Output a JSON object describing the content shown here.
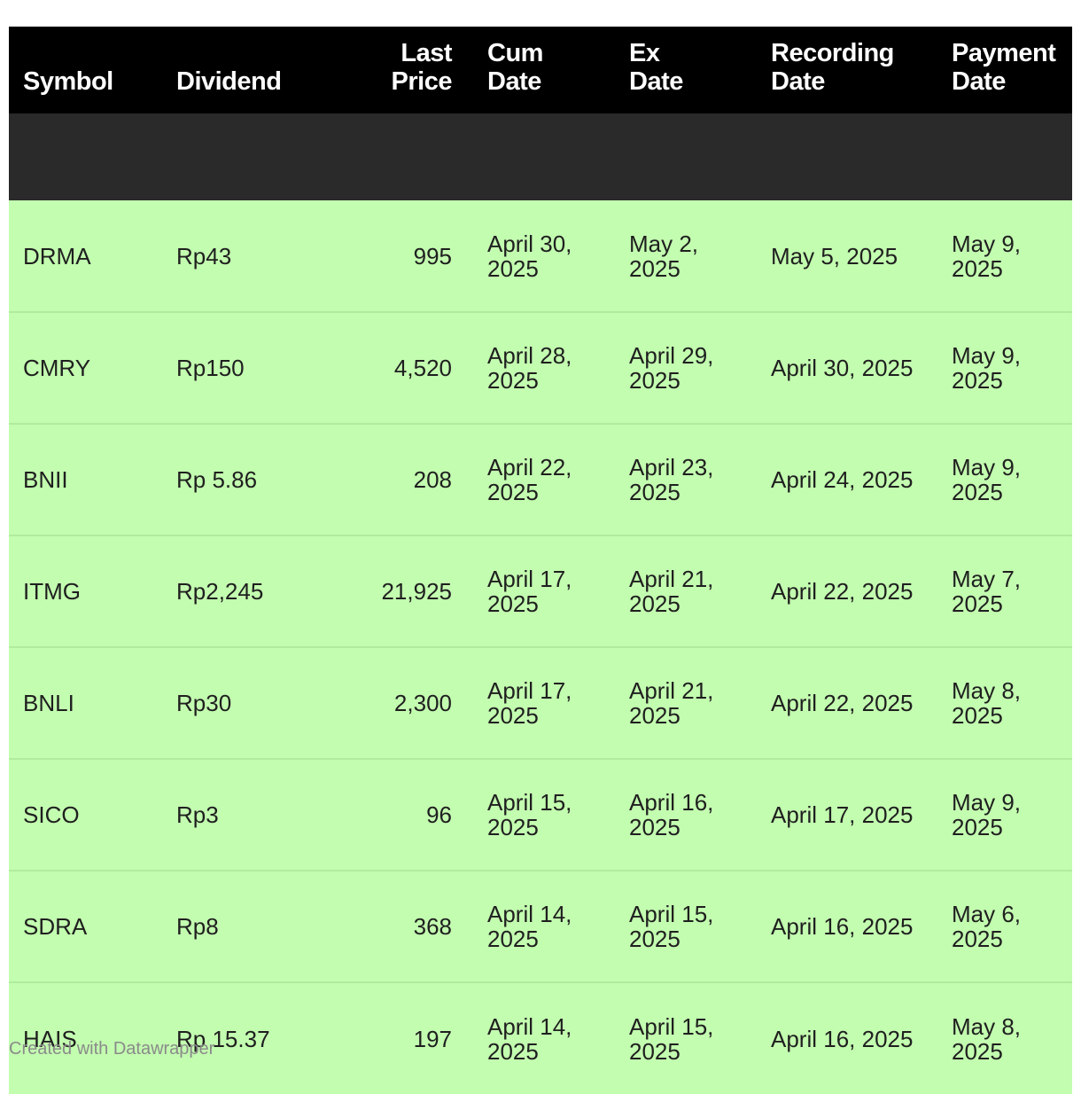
{
  "chart_data": {
    "type": "table",
    "columns": [
      "Symbol",
      "Dividend",
      "Last\nPrice",
      "Cum\nDate",
      "Ex\nDate",
      "Recording\nDate",
      "Payment\nDate"
    ],
    "rows": [
      [
        "DRMA",
        "Rp43",
        "995",
        "April 30, 2025",
        "May 2, 2025",
        "May 5, 2025",
        "May 9, 2025"
      ],
      [
        "CMRY",
        "Rp150",
        "4,520",
        "April 28, 2025",
        "April 29, 2025",
        "April 30, 2025",
        "May 9, 2025"
      ],
      [
        "BNII",
        "Rp 5.86",
        "208",
        "April 22, 2025",
        "April 23, 2025",
        "April 24, 2025",
        "May 9, 2025"
      ],
      [
        "ITMG",
        "Rp2,245",
        "21,925",
        "April 17, 2025",
        "April 21, 2025",
        "April 22, 2025",
        "May 7, 2025"
      ],
      [
        "BNLI",
        "Rp30",
        "2,300",
        "April 17, 2025",
        "April 21, 2025",
        "April 22, 2025",
        "May 8, 2025"
      ],
      [
        "SICO",
        "Rp3",
        "96",
        "April 15, 2025",
        "April 16, 2025",
        "April 17, 2025",
        "May 9, 2025"
      ],
      [
        "SDRA",
        "Rp8",
        "368",
        "April 14, 2025",
        "April 15, 2025",
        "April 16, 2025",
        "May 6, 2025"
      ],
      [
        "HAIS",
        "Rp 15.37",
        "197",
        "April 14, 2025",
        "April 15, 2025",
        "April 16, 2025",
        "May 8, 2025"
      ]
    ]
  },
  "footer": "Created with Datawrapper",
  "colors": {
    "header_bg": "#000000",
    "row_bg": "#c3fdb0",
    "row_divider": "#b0ec9d"
  }
}
